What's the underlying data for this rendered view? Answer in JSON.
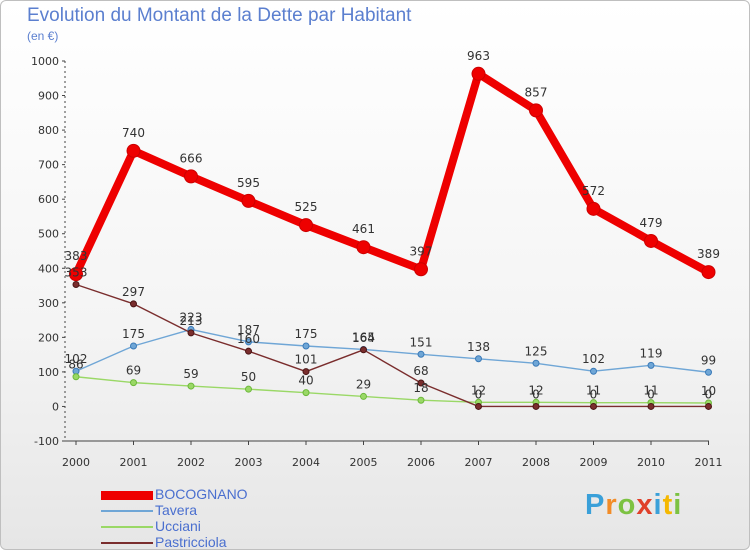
{
  "title": "Evolution du Montant de la Dette par Habitant",
  "subtitle": "(en €)",
  "brand": {
    "parts": [
      "P",
      "r",
      "o",
      "x",
      "i",
      "t",
      "i"
    ],
    "colors": [
      "#3aa0d9",
      "#f28c28",
      "#7cc242",
      "#e0402a",
      "#3aa0d9",
      "#f5b800",
      "#7cc242"
    ]
  },
  "chart_data": {
    "type": "line",
    "x": [
      "2000",
      "2001",
      "2002",
      "2003",
      "2004",
      "2005",
      "2006",
      "2007",
      "2008",
      "2009",
      "2010",
      "2011"
    ],
    "ylim": [
      -100,
      1000
    ],
    "yticks": [
      "-100",
      "0",
      "100",
      "200",
      "300",
      "400",
      "500",
      "600",
      "700",
      "800",
      "900",
      "1000"
    ],
    "grid": false,
    "legend_position": "bottom-left",
    "series": [
      {
        "name": "BOCOGNANO",
        "color": "#ee0000",
        "values": [
          383,
          740,
          666,
          595,
          525,
          461,
          397,
          963,
          857,
          572,
          479,
          389
        ],
        "labels": [
          "383",
          "740",
          "666",
          "595",
          "525",
          "461",
          "397",
          "963",
          "857",
          "572",
          "479",
          "389"
        ]
      },
      {
        "name": "Tavera",
        "color": "#6fa6d6",
        "values": [
          102,
          175,
          223,
          187,
          175,
          165,
          151,
          138,
          125,
          102,
          119,
          99
        ],
        "labels": [
          "102",
          "175",
          "223",
          "187",
          "175",
          "165",
          "151",
          "138",
          "125",
          "102",
          "119",
          "99"
        ]
      },
      {
        "name": "Ucciani",
        "color": "#9ad866",
        "values": [
          86,
          69,
          59,
          50,
          40,
          29,
          18,
          12,
          12,
          11,
          11,
          10
        ],
        "labels": [
          "86",
          "69",
          "59",
          "50",
          "40",
          "29",
          "18",
          "12",
          "12",
          "11",
          "11",
          "10"
        ]
      },
      {
        "name": "Pastricciola",
        "color": "#7a2d2d",
        "values": [
          353,
          297,
          213,
          160,
          101,
          164,
          68,
          0,
          0,
          0,
          0,
          0
        ],
        "labels": [
          "353",
          "297",
          "213",
          "160",
          "101",
          "164",
          "68",
          "0",
          "0",
          "0",
          "0",
          "0"
        ]
      }
    ]
  }
}
